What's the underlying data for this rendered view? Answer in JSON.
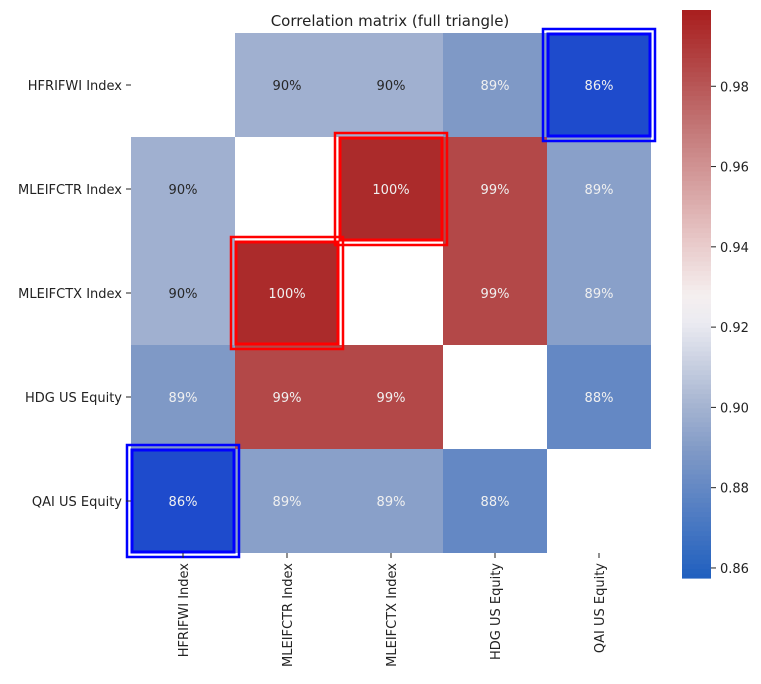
{
  "chart_data": {
    "type": "heatmap",
    "title": "Correlation matrix (full triangle)",
    "row_labels": [
      "HFRIFWI Index",
      "MLEIFCTR Index",
      "MLEIFCTX Index",
      "HDG US Equity",
      "QAI US Equity"
    ],
    "col_labels": [
      "HFRIFWI Index",
      "MLEIFCTR Index",
      "MLEIFCTX Index",
      "HDG US Equity",
      "QAI US Equity"
    ],
    "values": [
      [
        null,
        0.899,
        0.899,
        0.889,
        0.858
      ],
      [
        0.899,
        null,
        0.998,
        0.985,
        0.892
      ],
      [
        0.899,
        0.998,
        null,
        0.985,
        0.892
      ],
      [
        0.889,
        0.985,
        0.985,
        null,
        0.88
      ],
      [
        0.858,
        0.892,
        0.892,
        0.88,
        null
      ]
    ],
    "labels": [
      [
        "",
        "90%",
        "90%",
        "89%",
        "86%"
      ],
      [
        "90%",
        "",
        "100%",
        "99%",
        "89%"
      ],
      [
        "90%",
        "100%",
        "",
        "99%",
        "89%"
      ],
      [
        "89%",
        "99%",
        "99%",
        "",
        "88%"
      ],
      [
        "86%",
        "89%",
        "89%",
        "88%",
        ""
      ]
    ],
    "colorbar": {
      "vmin": 0.8575,
      "vmax": 0.999,
      "ticks": [
        0.86,
        0.88,
        0.9,
        0.92,
        0.94,
        0.96,
        0.98
      ],
      "tick_labels": [
        "0.86",
        "0.88",
        "0.90",
        "0.92",
        "0.94",
        "0.96",
        "0.98"
      ],
      "colormap": "coolwarm-like",
      "stops": [
        {
          "v": 0.0,
          "color": "#1f5fbf"
        },
        {
          "v": 0.22,
          "color": "#7e98c6"
        },
        {
          "v": 0.31,
          "color": "#a8b6d2"
        },
        {
          "v": 0.45,
          "color": "#ebebf1"
        },
        {
          "v": 0.5,
          "color": "#f5efef"
        },
        {
          "v": 0.6,
          "color": "#e7c6c6"
        },
        {
          "v": 0.8,
          "color": "#c27474"
        },
        {
          "v": 0.9,
          "color": "#b34848"
        },
        {
          "v": 1.0,
          "color": "#a91e1e"
        }
      ]
    },
    "highlights": [
      {
        "row": 0,
        "col": 4,
        "color": "#0000ff"
      },
      {
        "row": 4,
        "col": 0,
        "color": "#0000ff"
      },
      {
        "row": 1,
        "col": 2,
        "color": "#ff0000"
      },
      {
        "row": 2,
        "col": 1,
        "color": "#ff0000"
      }
    ],
    "extreme_cells": [
      {
        "row": 0,
        "col": 4,
        "fill": "#1e4bcc"
      },
      {
        "row": 4,
        "col": 0,
        "fill": "#1e4bcc"
      },
      {
        "row": 1,
        "col": 2,
        "fill": "#ab2b2b"
      },
      {
        "row": 2,
        "col": 1,
        "fill": "#ab2b2b"
      }
    ]
  }
}
